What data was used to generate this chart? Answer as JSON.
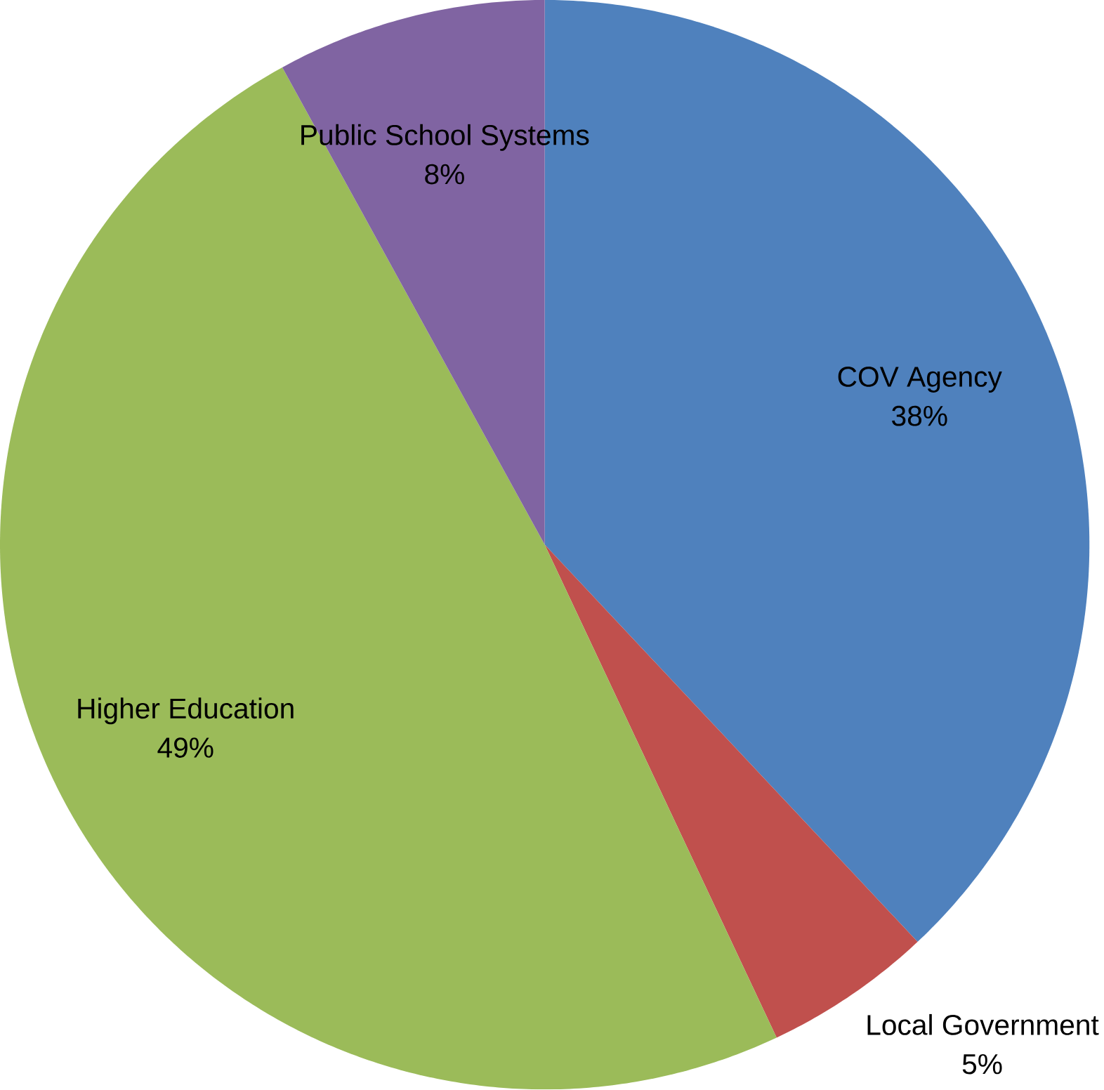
{
  "chart_data": {
    "type": "pie",
    "categories": [
      "COV Agency",
      "Local Government",
      "Higher Education",
      "Public School Systems"
    ],
    "values": [
      38,
      5,
      49,
      8
    ],
    "colors": [
      "#4f81bd",
      "#c0504d",
      "#9bbb59",
      "#8064a2"
    ],
    "value_labels": [
      "38%",
      "5%",
      "49%",
      "8%"
    ]
  }
}
